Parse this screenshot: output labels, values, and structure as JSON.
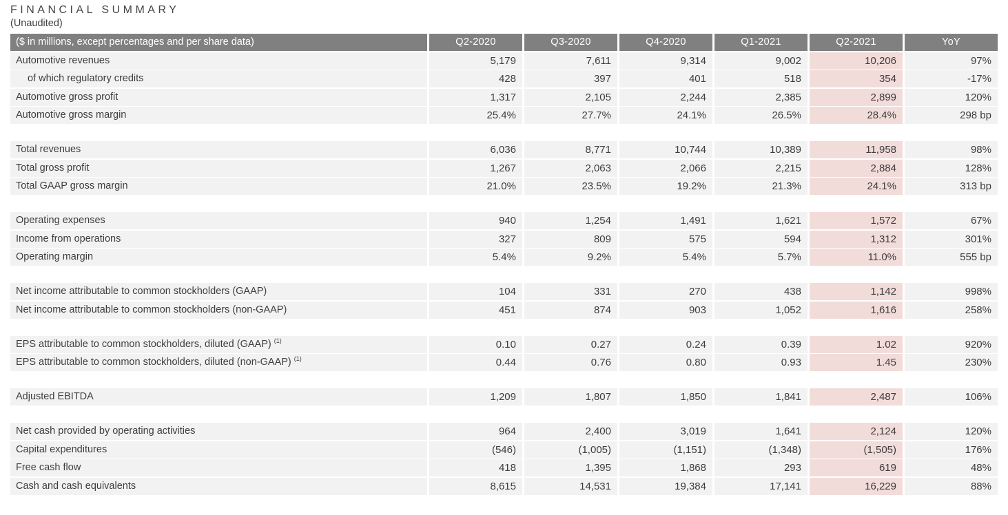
{
  "page": {
    "title": "FINANCIAL SUMMARY",
    "subtitle": "(Unaudited)"
  },
  "colors": {
    "header_bg": "#808080",
    "header_text": "#ffffff",
    "row_bg": "#f2f2f2",
    "highlight_bg": "#f2dcda",
    "text": "#3d3d3d"
  },
  "table": {
    "header": {
      "label": "($ in millions, except percentages and per share data)",
      "columns": [
        "Q2-2020",
        "Q3-2020",
        "Q4-2020",
        "Q1-2021",
        "Q2-2021",
        "YoY"
      ],
      "highlight_column": "Q2-2021"
    },
    "groups": [
      {
        "rows": [
          {
            "label": "Automotive revenues",
            "values": [
              "5,179",
              "7,611",
              "9,314",
              "9,002",
              "10,206",
              "97%"
            ]
          },
          {
            "label": "of which regulatory credits",
            "indent": true,
            "values": [
              "428",
              "397",
              "401",
              "518",
              "354",
              "-17%"
            ]
          },
          {
            "label": "Automotive gross profit",
            "values": [
              "1,317",
              "2,105",
              "2,244",
              "2,385",
              "2,899",
              "120%"
            ]
          },
          {
            "label": "Automotive gross margin",
            "values": [
              "25.4%",
              "27.7%",
              "24.1%",
              "26.5%",
              "28.4%",
              "298 bp"
            ]
          }
        ]
      },
      {
        "rows": [
          {
            "label": "Total revenues",
            "values": [
              "6,036",
              "8,771",
              "10,744",
              "10,389",
              "11,958",
              "98%"
            ]
          },
          {
            "label": "Total gross profit",
            "values": [
              "1,267",
              "2,063",
              "2,066",
              "2,215",
              "2,884",
              "128%"
            ]
          },
          {
            "label": "Total GAAP gross margin",
            "values": [
              "21.0%",
              "23.5%",
              "19.2%",
              "21.3%",
              "24.1%",
              "313 bp"
            ]
          }
        ]
      },
      {
        "rows": [
          {
            "label": "Operating expenses",
            "values": [
              "940",
              "1,254",
              "1,491",
              "1,621",
              "1,572",
              "67%"
            ]
          },
          {
            "label": "Income from operations",
            "values": [
              "327",
              "809",
              "575",
              "594",
              "1,312",
              "301%"
            ]
          },
          {
            "label": "Operating margin",
            "values": [
              "5.4%",
              "9.2%",
              "5.4%",
              "5.7%",
              "11.0%",
              "555 bp"
            ]
          }
        ]
      },
      {
        "rows": [
          {
            "label": "Net income attributable to common stockholders (GAAP)",
            "values": [
              "104",
              "331",
              "270",
              "438",
              "1,142",
              "998%"
            ]
          },
          {
            "label": "Net income attributable to common stockholders (non-GAAP)",
            "values": [
              "451",
              "874",
              "903",
              "1,052",
              "1,616",
              "258%"
            ]
          }
        ]
      },
      {
        "rows": [
          {
            "label": "EPS attributable to common stockholders, diluted (GAAP)",
            "footnote": "(1)",
            "values": [
              "0.10",
              "0.27",
              "0.24",
              "0.39",
              "1.02",
              "920%"
            ]
          },
          {
            "label": "EPS attributable to common stockholders, diluted (non-GAAP)",
            "footnote": "(1)",
            "values": [
              "0.44",
              "0.76",
              "0.80",
              "0.93",
              "1.45",
              "230%"
            ]
          }
        ]
      },
      {
        "rows": [
          {
            "label": "Adjusted EBITDA",
            "values": [
              "1,209",
              "1,807",
              "1,850",
              "1,841",
              "2,487",
              "106%"
            ]
          }
        ]
      },
      {
        "rows": [
          {
            "label": "Net cash provided by operating activities",
            "values": [
              "964",
              "2,400",
              "3,019",
              "1,641",
              "2,124",
              "120%"
            ]
          },
          {
            "label": "Capital expenditures",
            "values": [
              "(546)",
              "(1,005)",
              "(1,151)",
              "(1,348)",
              "(1,505)",
              "176%"
            ]
          },
          {
            "label": "Free cash flow",
            "values": [
              "418",
              "1,395",
              "1,868",
              "293",
              "619",
              "48%"
            ]
          },
          {
            "label": "Cash and cash equivalents",
            "values": [
              "8,615",
              "14,531",
              "19,384",
              "17,141",
              "16,229",
              "88%"
            ]
          }
        ]
      }
    ]
  }
}
